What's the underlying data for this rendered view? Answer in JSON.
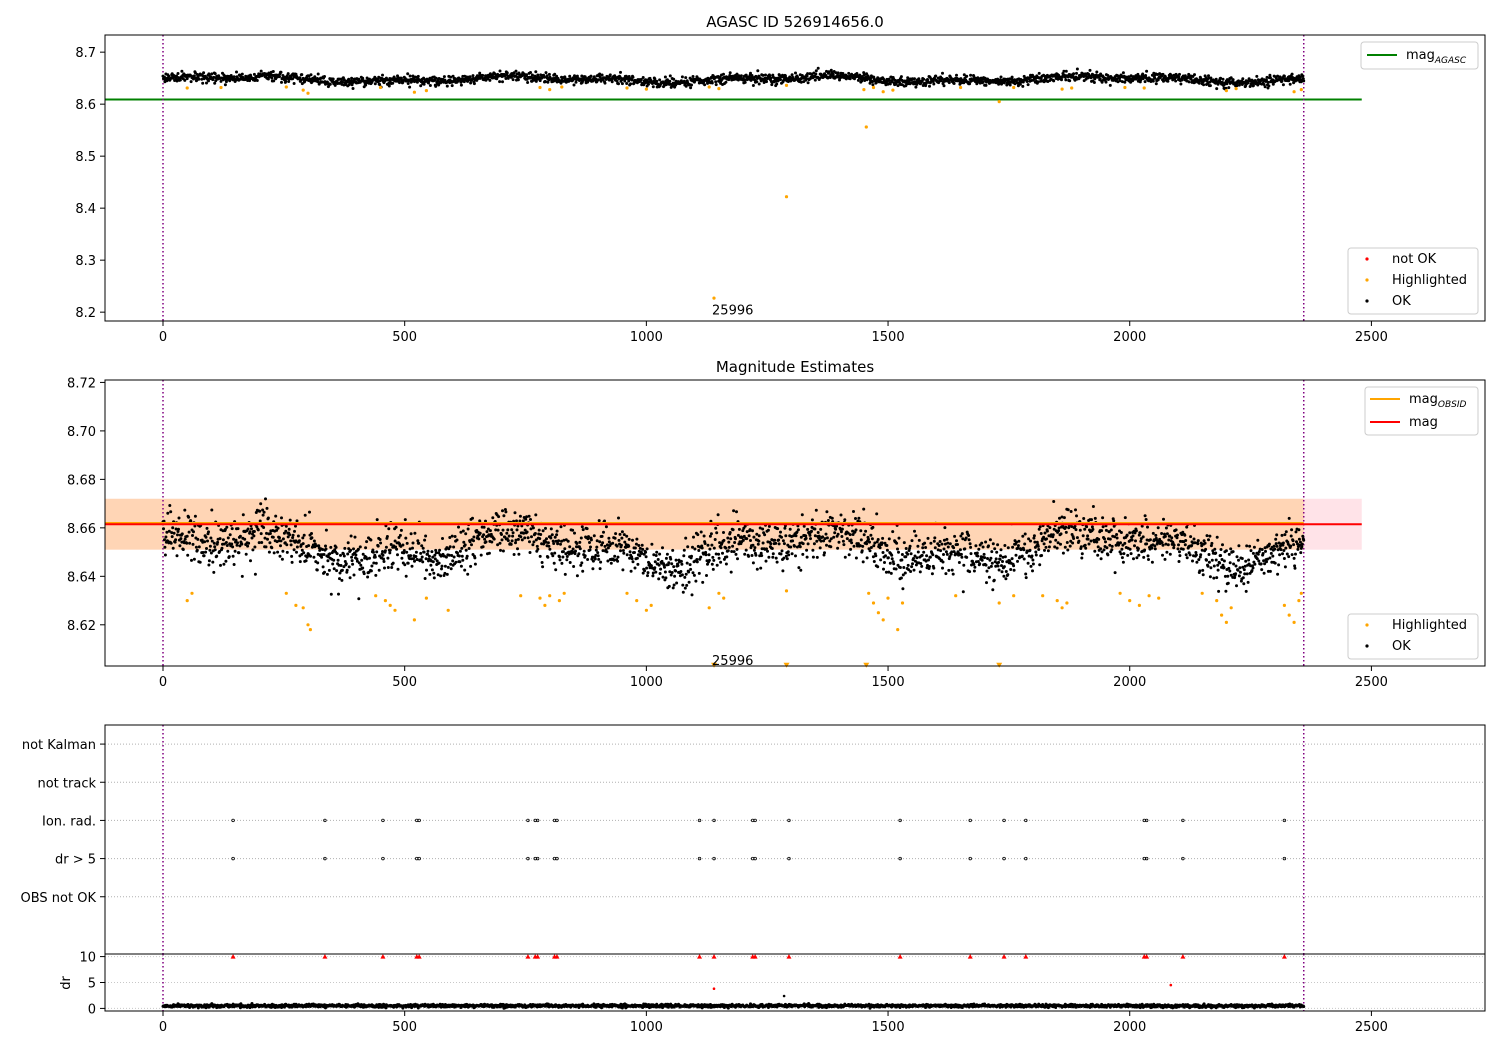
{
  "chart_data": [
    {
      "type": "scatter",
      "title": "AGASC ID 526914656.0",
      "xlim": [
        -120,
        2735
      ],
      "ylim": [
        8.183,
        8.733
      ],
      "xticks": [
        0,
        500,
        1000,
        1500,
        2000,
        2500
      ],
      "yticks": [
        8.2,
        8.3,
        8.4,
        8.5,
        8.6,
        8.7
      ],
      "ytick_labels": [
        "8.2",
        "8.3",
        "8.4",
        "8.5",
        "8.6",
        "8.7"
      ],
      "vlines": [
        0,
        2360
      ],
      "hline": {
        "name": "mag_AGASC",
        "value": 8.609,
        "x_range": [
          -120,
          2480
        ],
        "color": "#008000"
      },
      "annotation": {
        "text": "25996",
        "x": 1140,
        "y": 8.205
      },
      "legend_top": [
        {
          "label": "mag",
          "sub": "AGASC",
          "color": "#008000"
        }
      ],
      "legend_bottom": [
        {
          "label": "not OK",
          "color": "#ff0000"
        },
        {
          "label": "Highlighted",
          "color": "#ffa500"
        },
        {
          "label": "OK",
          "color": "#000000"
        }
      ],
      "series": [
        {
          "name": "OK",
          "color": "#000000",
          "generator": {
            "n": 2360,
            "x_range": [
              0,
              2360
            ],
            "center": 8.648,
            "spread": 0.008,
            "trend_amp": 0.007
          }
        },
        {
          "name": "Highlighted",
          "color": "#ffa500",
          "points": [
            [
              50,
              8.631
            ],
            [
              120,
              8.632
            ],
            [
              255,
              8.633
            ],
            [
              290,
              8.627
            ],
            [
              300,
              8.621
            ],
            [
              450,
              8.632
            ],
            [
              520,
              8.623
            ],
            [
              545,
              8.626
            ],
            [
              780,
              8.632
            ],
            [
              800,
              8.628
            ],
            [
              825,
              8.633
            ],
            [
              960,
              8.631
            ],
            [
              1000,
              8.629
            ],
            [
              1130,
              8.633
            ],
            [
              1150,
              8.63
            ],
            [
              1290,
              8.636
            ],
            [
              1450,
              8.628
            ],
            [
              1470,
              8.632
            ],
            [
              1490,
              8.624
            ],
            [
              1510,
              8.627
            ],
            [
              1650,
              8.632
            ],
            [
              1730,
              8.605
            ],
            [
              1760,
              8.632
            ],
            [
              1860,
              8.629
            ],
            [
              1880,
              8.631
            ],
            [
              1990,
              8.632
            ],
            [
              2030,
              8.631
            ],
            [
              2200,
              8.626
            ],
            [
              2220,
              8.63
            ],
            [
              2340,
              8.624
            ],
            [
              2355,
              8.628
            ],
            [
              1140,
              8.227
            ],
            [
              1290,
              8.422
            ],
            [
              1455,
              8.556
            ]
          ]
        }
      ]
    },
    {
      "type": "scatter",
      "title": "Magnitude Estimates",
      "xlim": [
        -120,
        2735
      ],
      "ylim": [
        8.603,
        8.721
      ],
      "xticks": [
        0,
        500,
        1000,
        1500,
        2000,
        2500
      ],
      "yticks": [
        8.62,
        8.64,
        8.66,
        8.68,
        8.7,
        8.72
      ],
      "ytick_labels": [
        "8.62",
        "8.64",
        "8.66",
        "8.68",
        "8.70",
        "8.72"
      ],
      "vlines": [
        0,
        2360
      ],
      "bands": [
        {
          "x_range": [
            -120,
            2480
          ],
          "y_range": [
            8.651,
            8.672
          ],
          "color": "#ffc0cb",
          "alpha": 0.45
        },
        {
          "x_range": [
            -120,
            2360
          ],
          "y_range": [
            8.651,
            8.672
          ],
          "color": "#ffa500",
          "alpha": 0.22
        }
      ],
      "lines": [
        {
          "name": "mag_OBSID",
          "color": "#ffa500",
          "value": 8.662,
          "x_range": [
            -120,
            2360
          ]
        },
        {
          "name": "mag",
          "color": "#ff0000",
          "value": 8.6615,
          "x_range": [
            -120,
            2480
          ]
        }
      ],
      "annotation": {
        "text": "25996",
        "x": 1140,
        "y": 8.6055
      },
      "legend_top": [
        {
          "label": "mag",
          "sub": "OBSID",
          "color": "#ffa500"
        },
        {
          "label": "mag",
          "sub": "",
          "color": "#ff0000"
        }
      ],
      "legend_bottom": [
        {
          "label": "Highlighted",
          "color": "#ffa500"
        },
        {
          "label": "OK",
          "color": "#000000"
        }
      ],
      "series": [
        {
          "name": "OK",
          "color": "#000000",
          "generator": {
            "n": 2360,
            "x_range": [
              0,
              2360
            ],
            "center": 8.652,
            "spread": 0.0085,
            "trend_amp": 0.008
          }
        },
        {
          "name": "Highlighted",
          "color": "#ffa500",
          "points": [
            [
              50,
              8.63
            ],
            [
              60,
              8.633
            ],
            [
              255,
              8.633
            ],
            [
              275,
              8.628
            ],
            [
              290,
              8.627
            ],
            [
              300,
              8.62
            ],
            [
              305,
              8.618
            ],
            [
              440,
              8.632
            ],
            [
              460,
              8.63
            ],
            [
              470,
              8.628
            ],
            [
              480,
              8.626
            ],
            [
              520,
              8.622
            ],
            [
              545,
              8.631
            ],
            [
              590,
              8.626
            ],
            [
              740,
              8.632
            ],
            [
              780,
              8.631
            ],
            [
              790,
              8.628
            ],
            [
              800,
              8.632
            ],
            [
              820,
              8.63
            ],
            [
              830,
              8.633
            ],
            [
              960,
              8.633
            ],
            [
              980,
              8.63
            ],
            [
              1000,
              8.626
            ],
            [
              1010,
              8.628
            ],
            [
              1130,
              8.627
            ],
            [
              1150,
              8.633
            ],
            [
              1160,
              8.631
            ],
            [
              1290,
              8.634
            ],
            [
              1460,
              8.633
            ],
            [
              1470,
              8.629
            ],
            [
              1480,
              8.625
            ],
            [
              1490,
              8.622
            ],
            [
              1500,
              8.631
            ],
            [
              1520,
              8.618
            ],
            [
              1530,
              8.629
            ],
            [
              1640,
              8.632
            ],
            [
              1730,
              8.629
            ],
            [
              1760,
              8.632
            ],
            [
              1820,
              8.632
            ],
            [
              1850,
              8.63
            ],
            [
              1860,
              8.627
            ],
            [
              1870,
              8.629
            ],
            [
              1980,
              8.633
            ],
            [
              2000,
              8.63
            ],
            [
              2020,
              8.628
            ],
            [
              2040,
              8.632
            ],
            [
              2060,
              8.631
            ],
            [
              2150,
              8.633
            ],
            [
              2180,
              8.63
            ],
            [
              2190,
              8.624
            ],
            [
              2200,
              8.621
            ],
            [
              2210,
              8.627
            ],
            [
              2320,
              8.628
            ],
            [
              2330,
              8.624
            ],
            [
              2340,
              8.621
            ],
            [
              2350,
              8.63
            ],
            [
              2355,
              8.633
            ]
          ]
        },
        {
          "name": "Highlighted-offscale",
          "color": "#ffa500",
          "marker": "triangle-down",
          "x": [
            1140,
            1290,
            1455,
            1730
          ],
          "y": 8.6035
        }
      ]
    },
    {
      "type": "scatter",
      "title": "",
      "xlim": [
        -120,
        2735
      ],
      "ylim": [
        -0.5,
        5.5
      ],
      "xticks": [],
      "vlines": [
        0,
        2360
      ],
      "categories": [
        "not Kalman",
        "not track",
        "Ion. rad.",
        "dr > 5",
        "OBS not OK"
      ],
      "category_y": [
        5,
        4,
        3,
        2,
        1
      ],
      "flag_x": [
        145,
        335,
        455,
        525,
        530,
        755,
        770,
        775,
        810,
        815,
        1110,
        1140,
        1220,
        1225,
        1295,
        1525,
        1670,
        1740,
        1785,
        2030,
        2035,
        2110,
        2320
      ],
      "flag_rows": [
        "Ion. rad.",
        "dr > 5"
      ]
    },
    {
      "type": "scatter",
      "title": "",
      "xlim": [
        -120,
        2735
      ],
      "ylim": [
        -0.5,
        10.5
      ],
      "xticks": [
        0,
        500,
        1000,
        1500,
        2000,
        2500
      ],
      "yticks": [
        0,
        5,
        10
      ],
      "ytick_labels": [
        "0",
        "5",
        "10"
      ],
      "ylabel": "dr",
      "vlines": [
        0,
        2360
      ],
      "series": [
        {
          "name": "dr",
          "color": "#000000",
          "generator": {
            "n": 2360,
            "x_range": [
              0,
              2360
            ],
            "center": 0.5,
            "spread": 0.25
          }
        },
        {
          "name": "dr-clipped",
          "color": "#ff0000",
          "marker": "triangle-up",
          "y": 10,
          "x": [
            145,
            335,
            455,
            525,
            530,
            755,
            770,
            775,
            810,
            815,
            1110,
            1140,
            1220,
            1225,
            1295,
            1525,
            1670,
            1740,
            1785,
            2030,
            2035,
            2110,
            2320
          ]
        },
        {
          "name": "dr-outliers",
          "color": "#ff0000",
          "points": [
            [
              1140,
              3.8
            ],
            [
              2085,
              4.5
            ]
          ]
        },
        {
          "name": "dr-outliers-ok",
          "color": "#000000",
          "points": [
            [
              1285,
              2.4
            ]
          ]
        }
      ]
    }
  ]
}
